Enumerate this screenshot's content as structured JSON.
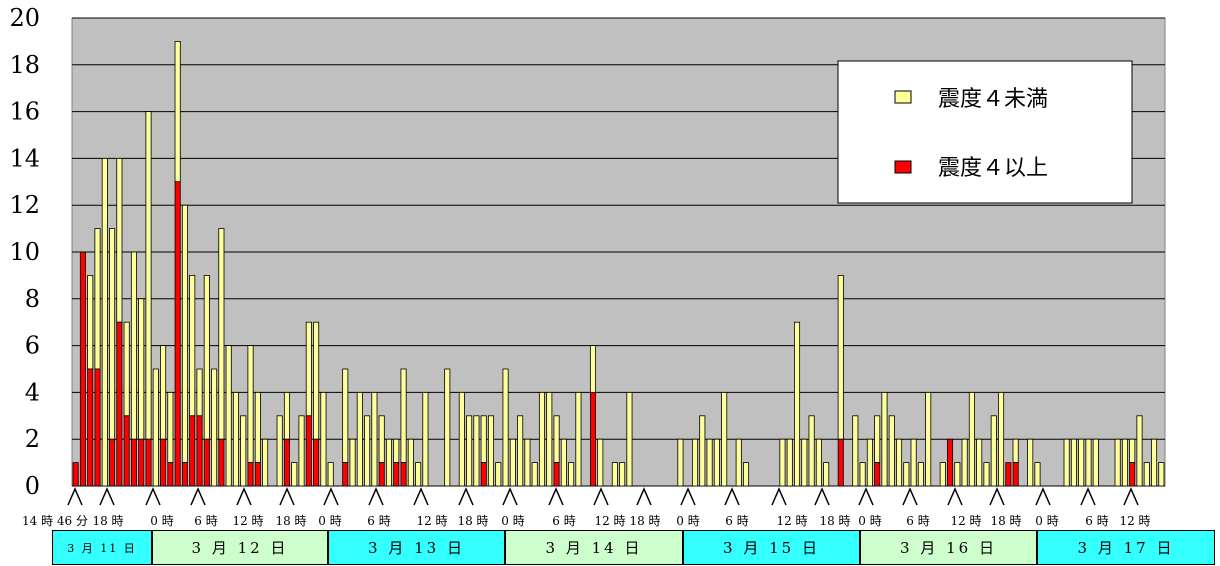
{
  "chart_data": {
    "type": "bar",
    "stacked": true,
    "ylim": [
      0,
      20
    ],
    "yticks": [
      0,
      2,
      4,
      6,
      8,
      10,
      12,
      14,
      16,
      18,
      20
    ],
    "grid": true,
    "legend_position": "top-right",
    "series": [
      {
        "name": "震度４未満",
        "color": "#ffff99"
      },
      {
        "name": "震度４以上",
        "color": "#ff0000"
      }
    ],
    "bars": [
      [
        1,
        1
      ],
      [
        10,
        10
      ],
      [
        9,
        5
      ],
      [
        11,
        5
      ],
      [
        14,
        0
      ],
      [
        11,
        2
      ],
      [
        14,
        7
      ],
      [
        7,
        3
      ],
      [
        10,
        2
      ],
      [
        8,
        2
      ],
      [
        16,
        2
      ],
      [
        5,
        0
      ],
      [
        6,
        2
      ],
      [
        4,
        1
      ],
      [
        19,
        13
      ],
      [
        12,
        1
      ],
      [
        9,
        3
      ],
      [
        5,
        3
      ],
      [
        9,
        2
      ],
      [
        5,
        0
      ],
      [
        11,
        2
      ],
      [
        6,
        0
      ],
      [
        4,
        0
      ],
      [
        3,
        0
      ],
      [
        6,
        1
      ],
      [
        4,
        1
      ],
      [
        2,
        0
      ],
      [
        0,
        0
      ],
      [
        3,
        0
      ],
      [
        4,
        2
      ],
      [
        1,
        0
      ],
      [
        3,
        0
      ],
      [
        7,
        3
      ],
      [
        7,
        2
      ],
      [
        4,
        0
      ],
      [
        1,
        0
      ],
      [
        0,
        0
      ],
      [
        5,
        1
      ],
      [
        2,
        0
      ],
      [
        4,
        0
      ],
      [
        3,
        0
      ],
      [
        4,
        0
      ],
      [
        3,
        1
      ],
      [
        2,
        0
      ],
      [
        2,
        1
      ],
      [
        5,
        1
      ],
      [
        2,
        0
      ],
      [
        1,
        0
      ],
      [
        4,
        0
      ],
      [
        0,
        0
      ],
      [
        0,
        0
      ],
      [
        5,
        0
      ],
      [
        0,
        0
      ],
      [
        4,
        0
      ],
      [
        3,
        0
      ],
      [
        3,
        0
      ],
      [
        3,
        1
      ],
      [
        3,
        0
      ],
      [
        1,
        0
      ],
      [
        5,
        0
      ],
      [
        2,
        0
      ],
      [
        3,
        0
      ],
      [
        2,
        0
      ],
      [
        1,
        0
      ],
      [
        4,
        0
      ],
      [
        4,
        0
      ],
      [
        3,
        1
      ],
      [
        2,
        0
      ],
      [
        1,
        0
      ],
      [
        4,
        0
      ],
      [
        0,
        0
      ],
      [
        6,
        4
      ],
      [
        2,
        0
      ],
      [
        0,
        0
      ],
      [
        1,
        0
      ],
      [
        1,
        0
      ],
      [
        4,
        0
      ],
      [
        0,
        0
      ],
      [
        0,
        0
      ],
      [
        0,
        0
      ],
      [
        0,
        0
      ],
      [
        0,
        0
      ],
      [
        0,
        0
      ],
      [
        2,
        0
      ],
      [
        0,
        0
      ],
      [
        2,
        0
      ],
      [
        3,
        0
      ],
      [
        2,
        0
      ],
      [
        2,
        0
      ],
      [
        4,
        0
      ],
      [
        0,
        0
      ],
      [
        2,
        0
      ],
      [
        1,
        0
      ],
      [
        0,
        0
      ],
      [
        0,
        0
      ],
      [
        0,
        0
      ],
      [
        0,
        0
      ],
      [
        2,
        0
      ],
      [
        2,
        0
      ],
      [
        7,
        0
      ],
      [
        2,
        0
      ],
      [
        3,
        0
      ],
      [
        2,
        0
      ],
      [
        1,
        0
      ],
      [
        0,
        0
      ],
      [
        9,
        2
      ],
      [
        0,
        0
      ],
      [
        3,
        0
      ],
      [
        1,
        0
      ],
      [
        2,
        0
      ],
      [
        3,
        1
      ],
      [
        4,
        0
      ],
      [
        3,
        0
      ],
      [
        2,
        0
      ],
      [
        1,
        0
      ],
      [
        2,
        0
      ],
      [
        1,
        0
      ],
      [
        4,
        0
      ],
      [
        0,
        0
      ],
      [
        1,
        0
      ],
      [
        2,
        2
      ],
      [
        1,
        0
      ],
      [
        2,
        0
      ],
      [
        4,
        0
      ],
      [
        2,
        0
      ],
      [
        1,
        0
      ],
      [
        3,
        0
      ],
      [
        4,
        0
      ],
      [
        1,
        1
      ],
      [
        2,
        1
      ],
      [
        0,
        0
      ],
      [
        2,
        0
      ],
      [
        1,
        0
      ],
      [
        0,
        0
      ],
      [
        0,
        0
      ],
      [
        0,
        0
      ],
      [
        2,
        0
      ],
      [
        2,
        0
      ],
      [
        2,
        0
      ],
      [
        2,
        0
      ],
      [
        2,
        0
      ],
      [
        0,
        0
      ],
      [
        0,
        0
      ],
      [
        2,
        0
      ],
      [
        2,
        0
      ],
      [
        2,
        1
      ],
      [
        3,
        0
      ],
      [
        1,
        0
      ],
      [
        2,
        0
      ],
      [
        1,
        0
      ]
    ],
    "x_tick_labels": [
      "14 時 46 分",
      "18 時",
      "0 時",
      "6 時",
      "12 時",
      "18 時",
      "0 時",
      "6 時",
      "12 時",
      "18 時",
      "0 時",
      "6 時",
      "12 時",
      "18 時",
      "0 時",
      "6 時",
      "12 時",
      "18 時",
      "0 時",
      "6 時",
      "12 時",
      "18 時",
      "0 時",
      "6 時",
      "12 時"
    ],
    "dates": [
      "3 月 11 日",
      "3 月 12 日",
      "3 月 13 日",
      "3 月 14 日",
      "3 月 15 日",
      "3 月 16 日",
      "3 月 17 日"
    ],
    "date_colors": [
      "#33ffff",
      "#ccffcc",
      "#33ffff",
      "#ccffcc",
      "#33ffff",
      "#ccffcc",
      "#33ffff"
    ],
    "colors": {
      "plot_bg": "#c0c0c0",
      "below": "#ffff99",
      "above": "#ff0000"
    }
  }
}
